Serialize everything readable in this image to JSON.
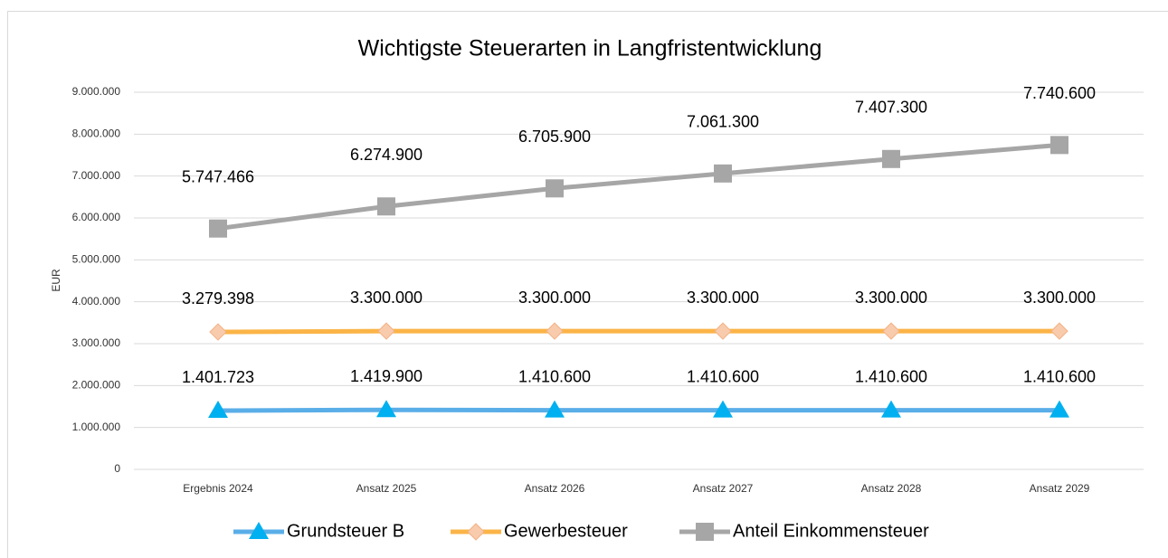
{
  "chart_data": {
    "type": "line",
    "title": "Wichtigste Steuerarten in Langfristentwicklung",
    "y_label": "EUR",
    "categories": [
      "Ergebnis 2024",
      "Ansatz 2025",
      "Ansatz 2026",
      "Ansatz 2027",
      "Ansatz 2028",
      "Ansatz 2029"
    ],
    "series": [
      {
        "name": "Grundsteuer B",
        "color": "#5aaee8",
        "marker": "triangle",
        "marker_color": "#00b0f0",
        "values": [
          1401723,
          1419900,
          1410600,
          1410600,
          1410600,
          1410600
        ],
        "value_labels": [
          "1.401.723",
          "1.419.900",
          "1.410.600",
          "1.410.600",
          "1.410.600",
          "1.410.600"
        ]
      },
      {
        "name": "Gewerbesteuer",
        "color": "#fbb447",
        "marker": "diamond",
        "marker_color": "#f8cbad",
        "values": [
          3279398,
          3300000,
          3300000,
          3300000,
          3300000,
          3300000
        ],
        "value_labels": [
          "3.279.398",
          "3.300.000",
          "3.300.000",
          "3.300.000",
          "3.300.000",
          "3.300.000"
        ]
      },
      {
        "name": "Anteil Einkommensteuer",
        "color": "#a6a6a6",
        "marker": "square",
        "marker_color": "#a6a6a6",
        "values": [
          5747466,
          6274900,
          6705900,
          7061300,
          7407300,
          7740600
        ],
        "value_labels": [
          "5.747.466",
          "6.274.900",
          "6.705.900",
          "7.061.300",
          "7.407.300",
          "7.740.600"
        ]
      }
    ],
    "ylim": [
      0,
      9000000
    ],
    "yticks": [
      0,
      {
        "value": 1000000,
        "label": "1.000.000"
      },
      {
        "value": 2000000,
        "label": "2.000.000"
      },
      {
        "value": 3000000,
        "label": "3.000.000"
      },
      {
        "value": 4000000,
        "label": "4.000.000"
      },
      {
        "value": 5000000,
        "label": "5.000.000"
      },
      {
        "value": 6000000,
        "label": "6.000.000"
      },
      {
        "value": 7000000,
        "label": "7.000.000"
      },
      {
        "value": 8000000,
        "label": "8.000.000"
      },
      {
        "value": 9000000,
        "label": "9.000.000"
      }
    ],
    "grid": true,
    "legend": "bottom"
  }
}
